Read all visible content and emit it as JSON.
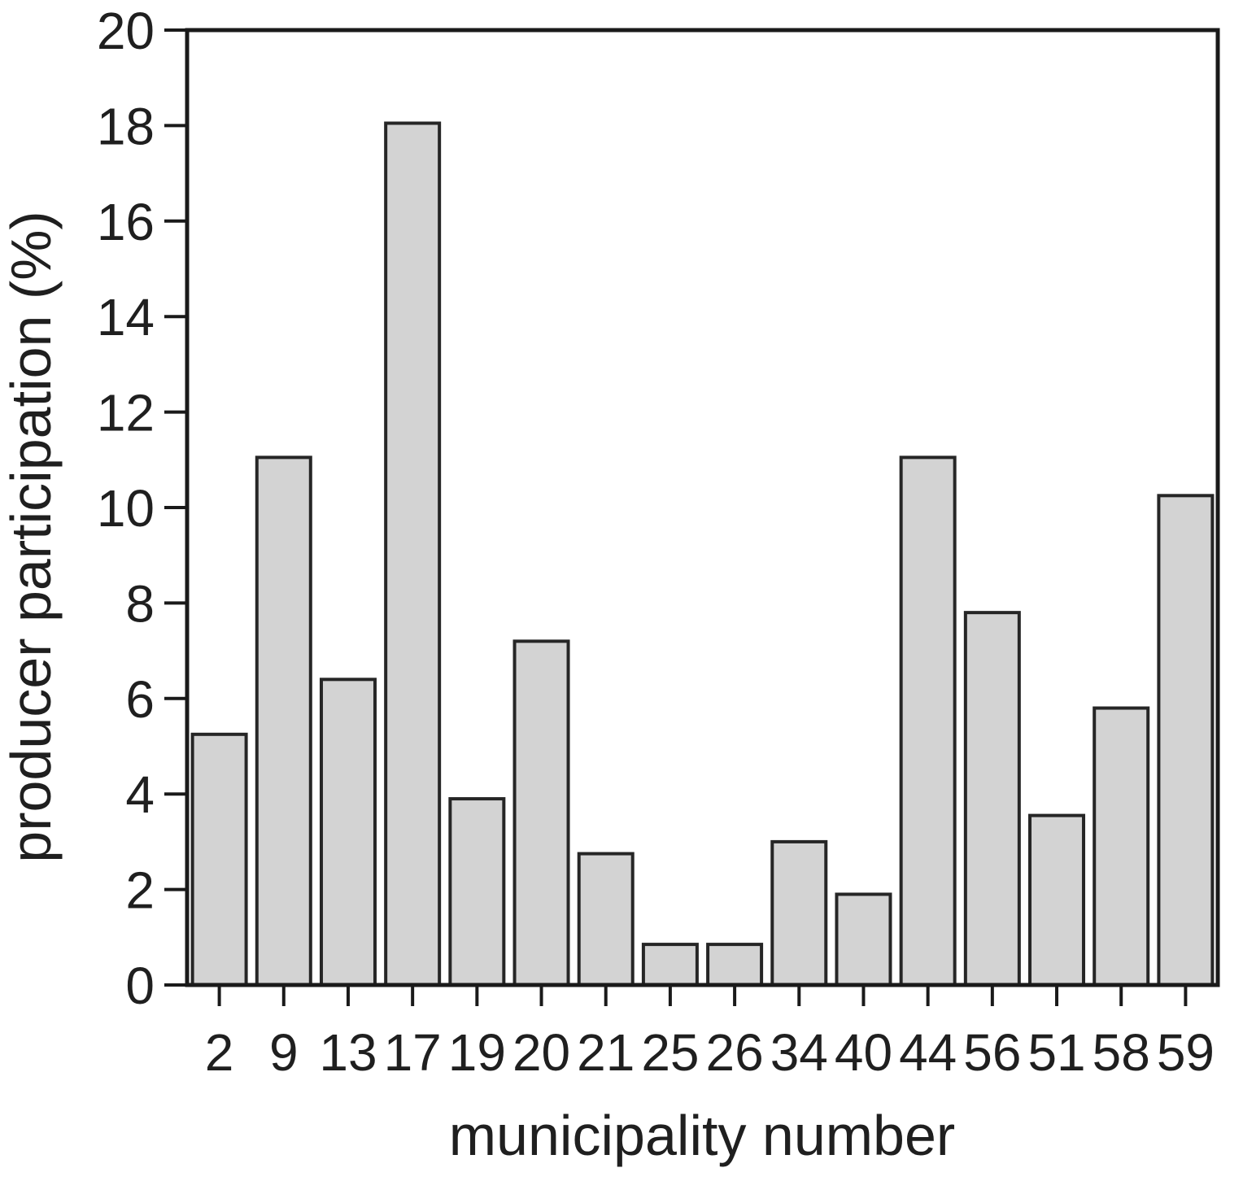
{
  "figure": {
    "description": "bar chart of producer participation by municipality"
  },
  "chart_data": {
    "type": "bar",
    "title": "",
    "xlabel": "municipality number",
    "ylabel": "producer participation (%)",
    "categories": [
      "2",
      "9",
      "13",
      "17",
      "19",
      "20",
      "21",
      "25",
      "26",
      "34",
      "40",
      "44",
      "56",
      "51",
      "58",
      "59"
    ],
    "values": [
      5.25,
      11.05,
      6.4,
      18.05,
      3.9,
      7.2,
      2.75,
      0.85,
      0.85,
      3.0,
      1.9,
      11.05,
      7.8,
      3.55,
      5.8,
      10.25
    ],
    "ylim": [
      0,
      20
    ],
    "ytick_step": 2,
    "grid": false,
    "legend_position": "none",
    "bar_fill": "#d3d3d3",
    "bar_stroke": "#262626",
    "axis_color": "#1a1a1a",
    "text_color": "#1f1f1f"
  }
}
